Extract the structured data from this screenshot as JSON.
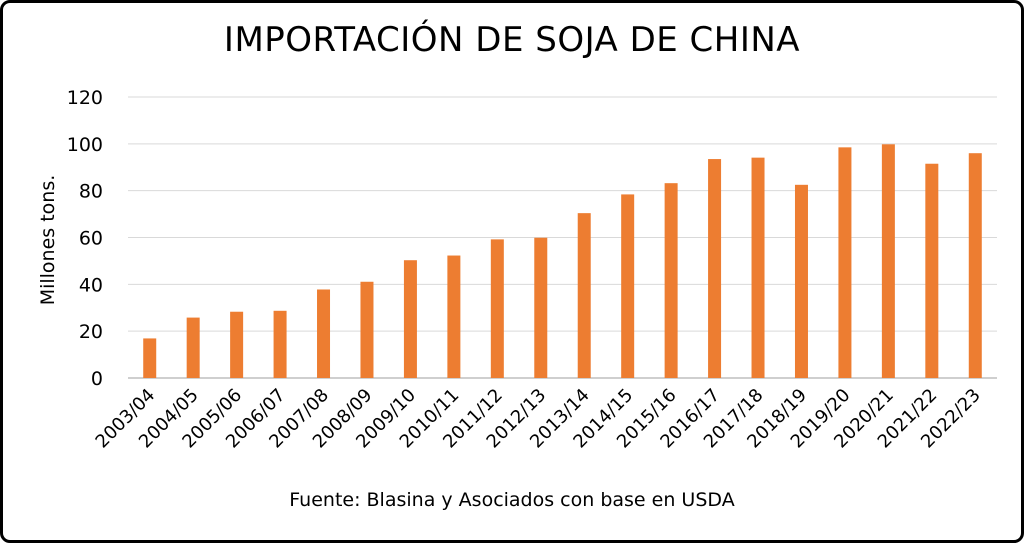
{
  "chart_data": {
    "type": "bar",
    "title": "IMPORTACIÓN DE SOJA DE CHINA",
    "ylabel": "Millones tons.",
    "xlabel": "",
    "source": "Fuente: Blasina y Asociados con base en USDA",
    "ylim": [
      0,
      120
    ],
    "yticks": [
      0,
      20,
      40,
      60,
      80,
      100,
      120
    ],
    "grid": true,
    "legend": "none",
    "bar_color": "#ED7D31",
    "categories": [
      "2003/04",
      "2004/05",
      "2005/06",
      "2006/07",
      "2007/08",
      "2008/09",
      "2009/10",
      "2010/11",
      "2011/12",
      "2012/13",
      "2013/14",
      "2014/15",
      "2015/16",
      "2016/17",
      "2017/18",
      "2018/19",
      "2019/20",
      "2020/21",
      "2021/22",
      "2022/23"
    ],
    "values": [
      16.9,
      25.8,
      28.3,
      28.7,
      37.8,
      41.1,
      50.3,
      52.3,
      59.2,
      59.9,
      70.4,
      78.4,
      83.2,
      93.5,
      94.1,
      82.5,
      98.5,
      99.8,
      91.5,
      96.0
    ]
  }
}
